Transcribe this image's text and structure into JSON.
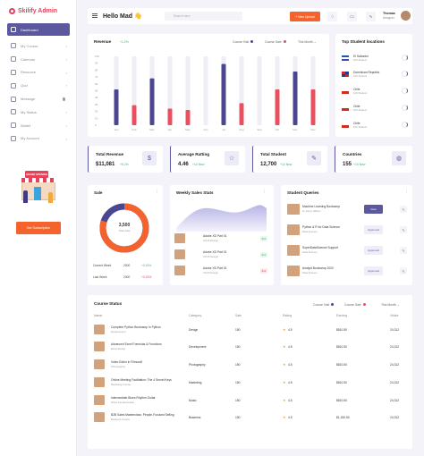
{
  "app": {
    "name": "Skilify Admin"
  },
  "sidebar": {
    "items": [
      {
        "label": "Dashboard"
      },
      {
        "label": "My Course"
      },
      {
        "label": "Calendar"
      },
      {
        "label": "Resource"
      },
      {
        "label": "Quiz"
      },
      {
        "label": "Message"
      },
      {
        "label": "My Status"
      },
      {
        "label": "Wallet"
      },
      {
        "label": "My Account"
      }
    ],
    "promo_sign": "GRAND OPENING",
    "cta_label": "Get Subscription"
  },
  "header": {
    "greeting": "Hello Mad 👋",
    "search_placeholder": "Search here",
    "upload_label": "+ New Upload",
    "user_name": "Thomas",
    "user_role": "Designer"
  },
  "revenue": {
    "title": "Revenue",
    "change": "+1.2%",
    "legend_visit": "Course Visit",
    "legend_sale": "Course Sale",
    "filter": "This Month"
  },
  "chart_data": {
    "type": "bar",
    "categories": [
      "Jan",
      "Feb",
      "Mar",
      "Apr",
      "May",
      "Jun",
      "Jul",
      "Aug",
      "Sep",
      "Oct",
      "Nov",
      "Dec"
    ],
    "ylim": [
      0,
      100
    ],
    "yticks": [
      100,
      90,
      80,
      70,
      60,
      50,
      40,
      30,
      20,
      10,
      0
    ],
    "series": [
      {
        "name": "Course Visit",
        "values": [
          52,
          0,
          68,
          0,
          0,
          0,
          89,
          0,
          0,
          0,
          78,
          0
        ]
      },
      {
        "name": "Course Sale",
        "values": [
          0,
          29,
          0,
          24,
          22,
          0,
          0,
          32,
          0,
          52,
          0,
          52
        ]
      }
    ],
    "colors": {
      "visit": "#4a4790",
      "sale": "#e8505f",
      "track": "#eeeef4"
    }
  },
  "top_locations": {
    "title": "Top Student locations",
    "countries": [
      {
        "name": "El Salvador",
        "sub": "100 Student"
      },
      {
        "name": "Dominican Republic",
        "sub": "100 Student"
      },
      {
        "name": "Chile",
        "sub": "100 Student"
      },
      {
        "name": "Chile",
        "sub": "100 Student"
      },
      {
        "name": "Chile",
        "sub": "100 Student"
      }
    ]
  },
  "kpis": [
    {
      "title": "Total Revenue",
      "value": "$11,081",
      "change": "+5.2%"
    },
    {
      "title": "Average Ratting",
      "value": "4.46",
      "change": "+10 New"
    },
    {
      "title": "Total Student",
      "value": "12,700",
      "change": "+10 New"
    },
    {
      "title": "Countries",
      "value": "155",
      "change": "+10 New"
    }
  ],
  "sale": {
    "title": "Sale",
    "center_value": "3,500",
    "center_label": "Total Sale",
    "progress": 0.8,
    "rows": [
      {
        "label": "Current Week",
        "value": "2000",
        "change": "+0.15%"
      },
      {
        "label": "Last Week",
        "value": "2000",
        "change": "+0.15%"
      }
    ]
  },
  "weekly": {
    "title": "Weekly Sales Stats",
    "items": [
      {
        "title": "Adobe XD Part 01",
        "sub": "UI/UX Design",
        "badge": "$12"
      },
      {
        "title": "Adobe XD Part 01",
        "sub": "UI/UX Design",
        "badge": "$12"
      },
      {
        "title": "Adobe XD Part 01",
        "sub": "UI/UX Design",
        "badge": "$12"
      }
    ]
  },
  "queries": {
    "title": "Student Queries",
    "items": [
      {
        "title": "Machine Learning Bootcamp",
        "sub": "by Jenny Wilson",
        "action": "View"
      },
      {
        "title": "Python & R for Data Science",
        "sub": "Data Science",
        "action": "Approved"
      },
      {
        "title": "SuperDataScience Support",
        "sub": "Data Science",
        "action": "Approved"
      },
      {
        "title": "Analyst Bootcamp 2020",
        "sub": "Data Science",
        "action": "Approved"
      }
    ]
  },
  "course_status": {
    "title": "Course Status",
    "legend_visit": "Course Visit",
    "legend_sale": "Course Sale",
    "filter": "This Month",
    "columns": [
      "Name",
      "Category",
      "Sale",
      "Rating",
      "Earning",
      "Visitor"
    ],
    "rows": [
      {
        "name": "Complete Python Bootcamp In Python",
        "sub": "Development",
        "category": "Design",
        "sale": "150",
        "rating": "4.5",
        "earning": "$810.50",
        "visitor": "24,312"
      },
      {
        "name": "Advanced Excel Formulas & Functions",
        "sub": "Excel Design",
        "category": "Development",
        "sale": "150",
        "rating": "4.5",
        "earning": "$810.50",
        "visitor": "24,312"
      },
      {
        "name": "Video Editor in Filmora9",
        "sub": "Photography",
        "category": "Photography",
        "sale": "150",
        "rating": "4.5",
        "earning": "$810.50",
        "visitor": "24,312"
      },
      {
        "name": "Online Meeting Facilitation: The 4 Secret Keys",
        "sub": "Marketing Course",
        "category": "Marketing",
        "sale": "150",
        "rating": "4.5",
        "earning": "$810.50",
        "visitor": "24,312"
      },
      {
        "name": "Intermediate Blues Rhythm Guitar",
        "sub": "Music Fundamentals",
        "category": "Music",
        "sale": "150",
        "rating": "4.5",
        "earning": "$810.50",
        "visitor": "24,312"
      },
      {
        "name": "B2B Sales Masterclass: People-Focused Selling",
        "sub": "Business Course",
        "category": "Business",
        "sale": "150",
        "rating": "4.5",
        "earning": "$1,150.50",
        "visitor": "24,312"
      }
    ]
  },
  "colors": {
    "primary": "#5b58a0",
    "accent": "#f4622e",
    "danger": "#e8425a",
    "success": "#39b86a"
  }
}
